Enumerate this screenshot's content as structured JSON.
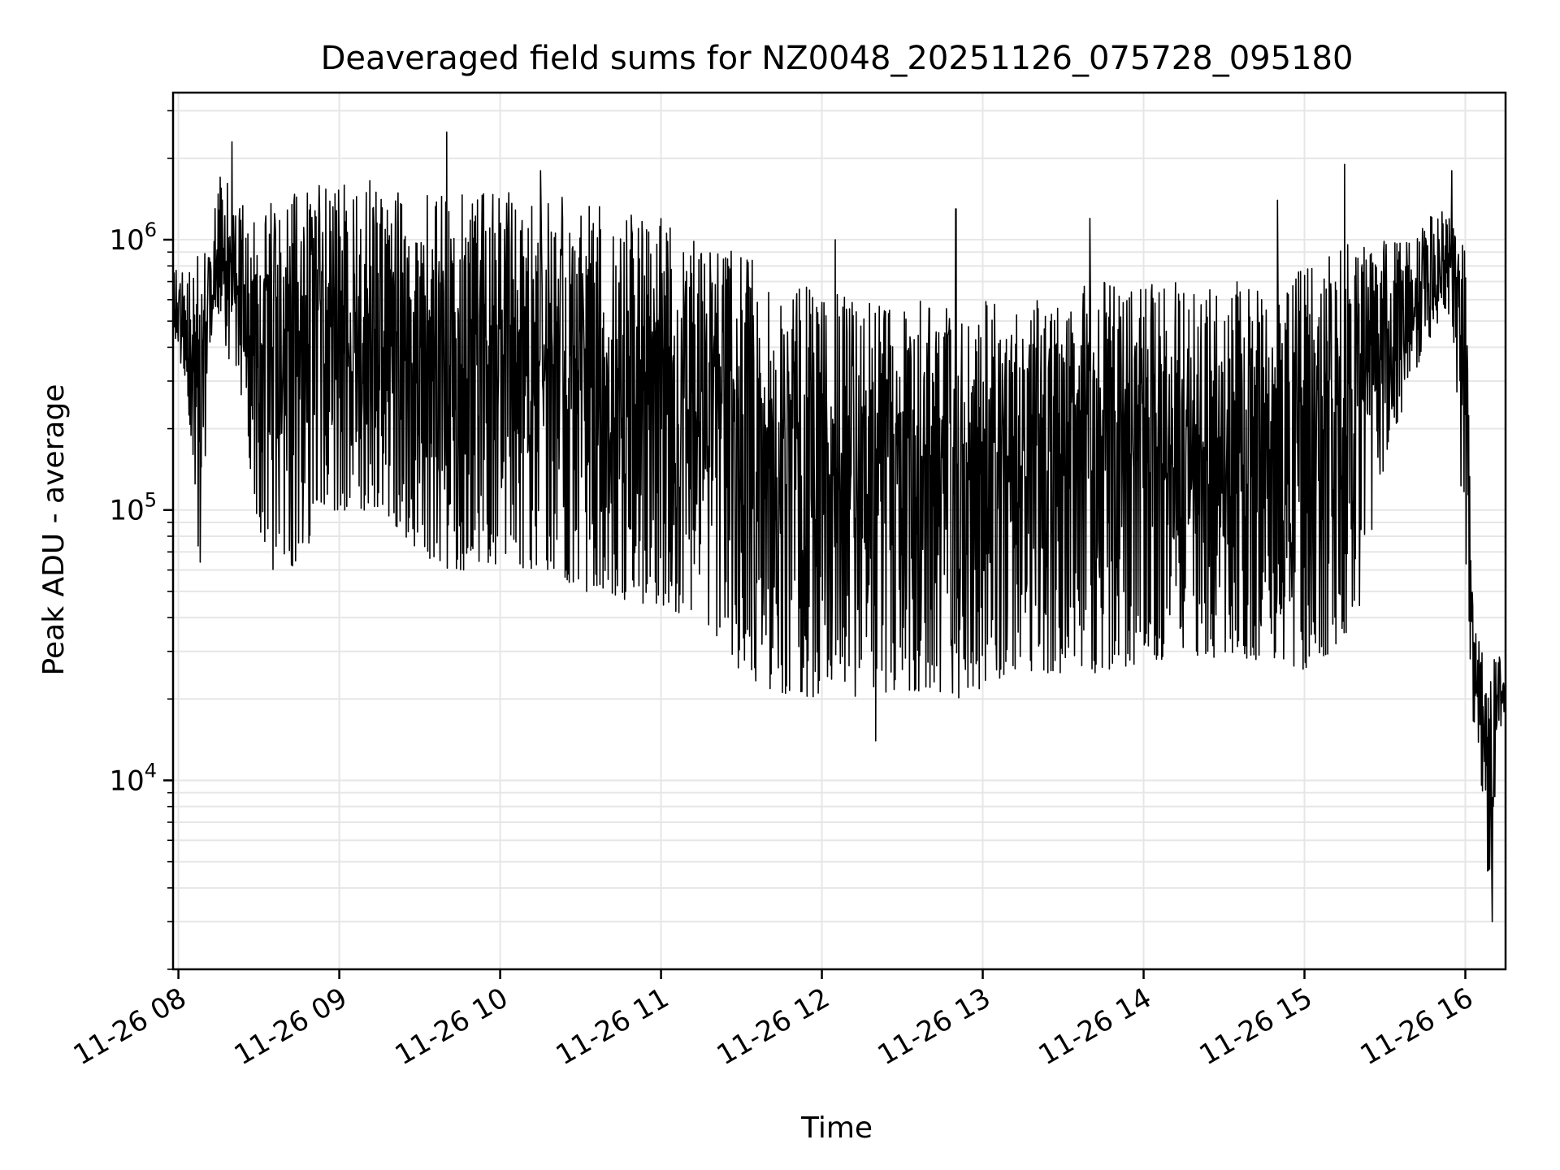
{
  "chart_data": {
    "type": "line",
    "title": "Deaveraged field sums for NZ0048_20251126_075728_095180",
    "xlabel": "Time",
    "ylabel": "Peak ADU - average",
    "yscale": "log",
    "grid": true,
    "xlim": [
      "2025-11-26T07:58",
      "2025-11-26T16:15"
    ],
    "ylim": [
      2000,
      3500000
    ],
    "x_ticks": [
      {
        "label": "11-26 08",
        "time": "2025-11-26T08:00"
      },
      {
        "label": "11-26 09",
        "time": "2025-11-26T09:00"
      },
      {
        "label": "11-26 10",
        "time": "2025-11-26T10:00"
      },
      {
        "label": "11-26 11",
        "time": "2025-11-26T11:00"
      },
      {
        "label": "11-26 12",
        "time": "2025-11-26T12:00"
      },
      {
        "label": "11-26 13",
        "time": "2025-11-26T13:00"
      },
      {
        "label": "11-26 14",
        "time": "2025-11-26T14:00"
      },
      {
        "label": "11-26 15",
        "time": "2025-11-26T15:00"
      },
      {
        "label": "11-26 16",
        "time": "2025-11-26T16:00"
      }
    ],
    "y_ticks": [
      {
        "base": "10",
        "exp": "4",
        "value": 10000
      },
      {
        "base": "10",
        "exp": "5",
        "value": 100000
      },
      {
        "base": "10",
        "exp": "6",
        "value": 1000000
      }
    ],
    "series": [
      {
        "color": "#000000",
        "x": [
          "2025-11-26T07:58",
          "2025-11-26T08:03",
          "2025-11-26T08:08",
          "2025-11-26T08:12",
          "2025-11-26T08:16",
          "2025-11-26T08:20",
          "2025-11-26T08:25",
          "2025-11-26T08:30",
          "2025-11-26T08:35",
          "2025-11-26T08:40",
          "2025-11-26T08:45",
          "2025-11-26T08:50",
          "2025-11-26T08:55",
          "2025-11-26T09:00",
          "2025-11-26T09:10",
          "2025-11-26T09:20",
          "2025-11-26T09:30",
          "2025-11-26T09:40",
          "2025-11-26T09:50",
          "2025-11-26T10:00",
          "2025-11-26T10:10",
          "2025-11-26T10:20",
          "2025-11-26T10:30",
          "2025-11-26T10:40",
          "2025-11-26T10:50",
          "2025-11-26T11:00",
          "2025-11-26T11:10",
          "2025-11-26T11:20",
          "2025-11-26T11:30",
          "2025-11-26T11:40",
          "2025-11-26T11:50",
          "2025-11-26T12:00",
          "2025-11-26T12:10",
          "2025-11-26T12:20",
          "2025-11-26T12:30",
          "2025-11-26T12:40",
          "2025-11-26T12:50",
          "2025-11-26T13:00",
          "2025-11-26T13:10",
          "2025-11-26T13:20",
          "2025-11-26T13:30",
          "2025-11-26T13:40",
          "2025-11-26T13:50",
          "2025-11-26T14:00",
          "2025-11-26T14:10",
          "2025-11-26T14:20",
          "2025-11-26T14:30",
          "2025-11-26T14:40",
          "2025-11-26T14:50",
          "2025-11-26T15:00",
          "2025-11-26T15:10",
          "2025-11-26T15:20",
          "2025-11-26T15:30",
          "2025-11-26T15:40",
          "2025-11-26T15:45",
          "2025-11-26T15:50",
          "2025-11-26T15:55",
          "2025-11-26T16:00",
          "2025-11-26T16:03",
          "2025-11-26T16:06",
          "2025-11-26T16:09",
          "2025-11-26T16:12",
          "2025-11-26T16:15"
        ],
        "high": [
          800000,
          800000,
          900000,
          1000000,
          2000000,
          1500000,
          1300000,
          1300000,
          1400000,
          1500000,
          1500000,
          1600000,
          1600000,
          1600000,
          1700000,
          1700000,
          1600000,
          1600000,
          1500000,
          1500000,
          1500000,
          1500000,
          1400000,
          1300000,
          1300000,
          1200000,
          1100000,
          1000000,
          900000,
          800000,
          700000,
          700000,
          600000,
          600000,
          600000,
          600000,
          600000,
          600000,
          600000,
          600000,
          600000,
          700000,
          700000,
          700000,
          700000,
          700000,
          700000,
          700000,
          700000,
          800000,
          900000,
          1000000,
          1000000,
          1000000,
          1200000,
          1300000,
          1200000,
          900000,
          40000,
          30000,
          30000,
          30000,
          25000
        ],
        "low": [
          400000,
          300000,
          60000,
          400000,
          500000,
          300000,
          200000,
          80000,
          60000,
          60000,
          60000,
          80000,
          100000,
          100000,
          100000,
          90000,
          70000,
          60000,
          60000,
          60000,
          60000,
          60000,
          50000,
          50000,
          45000,
          45000,
          40000,
          35000,
          25000,
          22000,
          20000,
          20000,
          20000,
          22000,
          20000,
          22000,
          20000,
          22000,
          25000,
          25000,
          25000,
          25000,
          25000,
          28000,
          28000,
          28000,
          28000,
          28000,
          28000,
          25000,
          30000,
          40000,
          150000,
          300000,
          400000,
          500000,
          500000,
          60000,
          15000,
          9000,
          3000,
          15000,
          17000
        ]
      }
    ],
    "spikes": [
      {
        "time": "2025-11-26T08:20",
        "value": 2300000
      },
      {
        "time": "2025-11-26T09:40",
        "value": 2500000
      },
      {
        "time": "2025-11-26T10:15",
        "value": 1800000
      },
      {
        "time": "2025-11-26T12:05",
        "value": 1000000
      },
      {
        "time": "2025-11-26T12:50",
        "value": 1300000
      },
      {
        "time": "2025-11-26T13:40",
        "value": 1200000
      },
      {
        "time": "2025-11-26T14:50",
        "value": 1400000
      },
      {
        "time": "2025-11-26T15:15",
        "value": 1900000
      },
      {
        "time": "2025-11-26T15:55",
        "value": 1800000
      },
      {
        "time": "2025-11-26T12:20",
        "value": 14000
      },
      {
        "time": "2025-11-26T16:10",
        "value": 3000
      }
    ]
  }
}
